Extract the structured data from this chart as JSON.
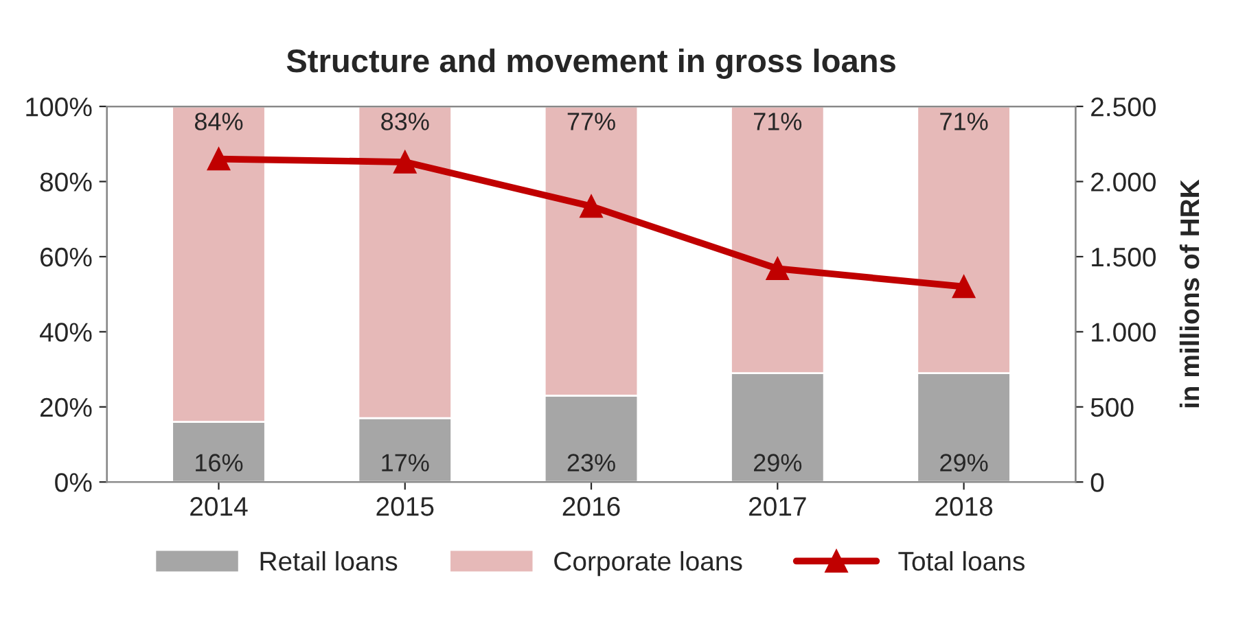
{
  "chart_data": {
    "type": "bar",
    "title": "Structure and movement in gross loans",
    "y2label": "in millions of HRK",
    "categories": [
      "2014",
      "2015",
      "2016",
      "2017",
      "2018"
    ],
    "stacked": true,
    "series": [
      {
        "name": "Retail loans",
        "color": "#a6a6a6",
        "values": [
          16,
          17,
          23,
          29,
          29
        ],
        "value_labels": [
          "16%",
          "17%",
          "23%",
          "29%",
          "29%"
        ]
      },
      {
        "name": "Corporate loans",
        "color": "#e6b9b8",
        "values": [
          84,
          83,
          77,
          71,
          71
        ],
        "value_labels": [
          "84%",
          "83%",
          "77%",
          "71%",
          "71%"
        ]
      },
      {
        "name": "Total loans",
        "type": "line",
        "axis": "y2",
        "color": "#c00000",
        "marker": "triangle",
        "values": [
          2150,
          2130,
          1835,
          1420,
          1300
        ]
      }
    ],
    "ylim": [
      0,
      100
    ],
    "yticks": [
      {
        "value": 0,
        "label": "0%"
      },
      {
        "value": 20,
        "label": "20%"
      },
      {
        "value": 40,
        "label": "40%"
      },
      {
        "value": 60,
        "label": "60%"
      },
      {
        "value": 80,
        "label": "80%"
      },
      {
        "value": 100,
        "label": "100%"
      }
    ],
    "y2lim": [
      0,
      2500
    ],
    "y2ticks": [
      0,
      500,
      {
        "value": 1000,
        "label": "1.000"
      },
      {
        "value": 1500,
        "label": "1.500"
      },
      {
        "value": 2000,
        "label": "2.000"
      },
      {
        "value": 2500,
        "label": "2.500"
      }
    ],
    "legend": "bottom",
    "grid": false
  }
}
